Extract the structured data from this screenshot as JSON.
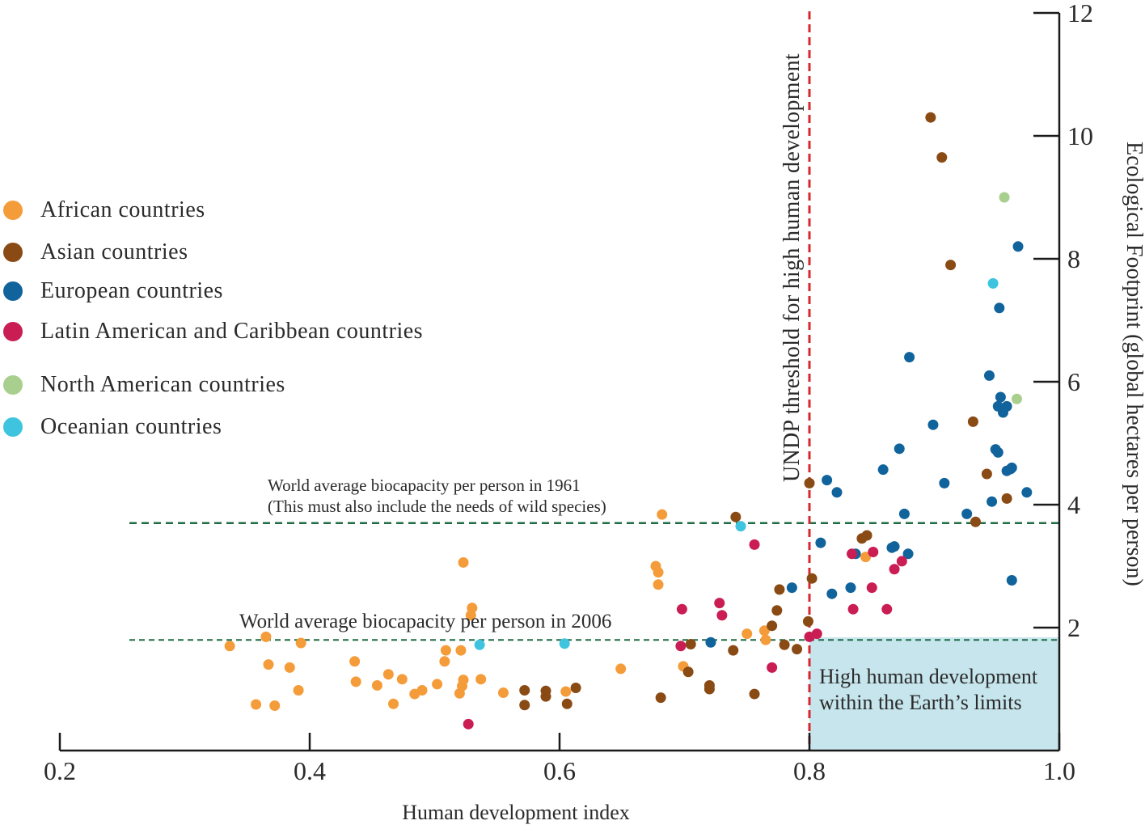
{
  "chart_data": {
    "type": "scatter",
    "xlabel": "Human development index",
    "ylabel": "Ecological Footprint (global hectares per person)",
    "xlim": [
      0.2,
      1.0
    ],
    "ylim": [
      0,
      12
    ],
    "x_ticks": [
      "0.2",
      "0.4",
      "0.6",
      "0.8",
      "1.0"
    ],
    "y_ticks": [
      "2",
      "4",
      "6",
      "8",
      "10",
      "12"
    ],
    "legend_position": "left",
    "annotations": {
      "threshold": "UNDP threshold for high human development",
      "line_1961_a": "World average biocapacity per person in 1961",
      "line_1961_b": "(This must also include the needs of wild species)",
      "line_2006": "World average biocapacity per person in 2006",
      "box_a": "High human development",
      "box_b": "within the Earth’s limits"
    },
    "reference_lines": {
      "threshold_hdi": 0.8,
      "biocapacity_1961": 3.7,
      "biocapacity_2006": 1.8
    },
    "colors": {
      "threshold": "#d7282f",
      "biocapacity": "#1e6b45",
      "box": "#c6e5ec",
      "axis": "#1a1a1a"
    },
    "series": [
      {
        "name": "African countries",
        "color": "#f59c3a",
        "points": [
          [
            0.336,
            1.7
          ],
          [
            0.357,
            0.75
          ],
          [
            0.365,
            1.85
          ],
          [
            0.367,
            1.4
          ],
          [
            0.372,
            0.73
          ],
          [
            0.384,
            1.35
          ],
          [
            0.391,
            0.98
          ],
          [
            0.393,
            1.75
          ],
          [
            0.436,
            1.45
          ],
          [
            0.437,
            1.12
          ],
          [
            0.454,
            1.06
          ],
          [
            0.463,
            1.24
          ],
          [
            0.467,
            0.76
          ],
          [
            0.474,
            1.16
          ],
          [
            0.484,
            0.92
          ],
          [
            0.49,
            0.98
          ],
          [
            0.502,
            1.08
          ],
          [
            0.508,
            1.45
          ],
          [
            0.509,
            1.63
          ],
          [
            0.521,
            1.63
          ],
          [
            0.522,
            1.05
          ],
          [
            0.52,
            0.93
          ],
          [
            0.523,
            1.15
          ],
          [
            0.523,
            3.06
          ],
          [
            0.529,
            2.2
          ],
          [
            0.53,
            2.32
          ],
          [
            0.537,
            1.16
          ],
          [
            0.555,
            0.94
          ],
          [
            0.605,
            0.96
          ],
          [
            0.649,
            1.33
          ],
          [
            0.677,
            3.0
          ],
          [
            0.679,
            2.9
          ],
          [
            0.679,
            2.7
          ],
          [
            0.682,
            3.84
          ],
          [
            0.699,
            1.37
          ],
          [
            0.75,
            1.9
          ],
          [
            0.764,
            1.95
          ],
          [
            0.765,
            1.8
          ],
          [
            0.845,
            3.15
          ]
        ]
      },
      {
        "name": "Asian countries",
        "color": "#8a4a14",
        "points": [
          [
            0.572,
            0.74
          ],
          [
            0.572,
            0.98
          ],
          [
            0.589,
            0.88
          ],
          [
            0.589,
            0.97
          ],
          [
            0.606,
            0.76
          ],
          [
            0.613,
            1.02
          ],
          [
            0.681,
            0.86
          ],
          [
            0.703,
            1.28
          ],
          [
            0.705,
            1.73
          ],
          [
            0.72,
            1.06
          ],
          [
            0.72,
            1.0
          ],
          [
            0.739,
            1.63
          ],
          [
            0.741,
            3.8
          ],
          [
            0.756,
            0.92
          ],
          [
            0.77,
            2.03
          ],
          [
            0.774,
            2.28
          ],
          [
            0.776,
            2.62
          ],
          [
            0.78,
            1.72
          ],
          [
            0.79,
            1.65
          ],
          [
            0.799,
            2.1
          ],
          [
            0.8,
            4.35
          ],
          [
            0.802,
            2.8
          ],
          [
            0.842,
            3.45
          ],
          [
            0.846,
            3.5
          ],
          [
            0.897,
            10.3
          ],
          [
            0.906,
            9.65
          ],
          [
            0.913,
            7.9
          ],
          [
            0.931,
            5.35
          ],
          [
            0.933,
            3.72
          ],
          [
            0.942,
            4.5
          ],
          [
            0.958,
            4.1
          ]
        ]
      },
      {
        "name": "European countries",
        "color": "#11639c",
        "points": [
          [
            0.721,
            1.76
          ],
          [
            0.786,
            2.65
          ],
          [
            0.809,
            3.38
          ],
          [
            0.814,
            4.4
          ],
          [
            0.818,
            2.55
          ],
          [
            0.822,
            4.2
          ],
          [
            0.833,
            2.65
          ],
          [
            0.837,
            3.2
          ],
          [
            0.859,
            4.57
          ],
          [
            0.866,
            3.3
          ],
          [
            0.868,
            3.32
          ],
          [
            0.872,
            4.91
          ],
          [
            0.876,
            3.85
          ],
          [
            0.879,
            3.2
          ],
          [
            0.88,
            6.4
          ],
          [
            0.899,
            5.3
          ],
          [
            0.908,
            4.35
          ],
          [
            0.926,
            3.85
          ],
          [
            0.944,
            6.1
          ],
          [
            0.946,
            4.05
          ],
          [
            0.949,
            4.9
          ],
          [
            0.951,
            5.6
          ],
          [
            0.951,
            4.85
          ],
          [
            0.952,
            7.2
          ],
          [
            0.953,
            5.75
          ],
          [
            0.955,
            5.5
          ],
          [
            0.958,
            5.6
          ],
          [
            0.958,
            4.55
          ],
          [
            0.961,
            4.58
          ],
          [
            0.962,
            4.6
          ],
          [
            0.962,
            2.77
          ],
          [
            0.967,
            8.2
          ],
          [
            0.974,
            4.2
          ]
        ]
      },
      {
        "name": "Latin American and Caribbean countries",
        "color": "#c91d54",
        "points": [
          [
            0.527,
            0.43
          ],
          [
            0.697,
            1.7
          ],
          [
            0.698,
            2.3
          ],
          [
            0.728,
            2.4
          ],
          [
            0.73,
            2.2
          ],
          [
            0.756,
            3.35
          ],
          [
            0.77,
            1.35
          ],
          [
            0.8,
            1.85
          ],
          [
            0.806,
            1.9
          ],
          [
            0.834,
            3.2
          ],
          [
            0.835,
            2.3
          ],
          [
            0.85,
            2.65
          ],
          [
            0.851,
            3.23
          ],
          [
            0.862,
            2.3
          ],
          [
            0.868,
            2.95
          ],
          [
            0.874,
            3.08
          ]
        ]
      },
      {
        "name": "North American countries",
        "color": "#a9cf8e",
        "points": [
          [
            0.956,
            9.0
          ],
          [
            0.966,
            5.72
          ]
        ]
      },
      {
        "name": "Oceanian countries",
        "color": "#3ec4df",
        "points": [
          [
            0.536,
            1.72
          ],
          [
            0.604,
            1.74
          ],
          [
            0.745,
            3.65
          ],
          [
            0.947,
            7.6
          ]
        ]
      }
    ]
  }
}
